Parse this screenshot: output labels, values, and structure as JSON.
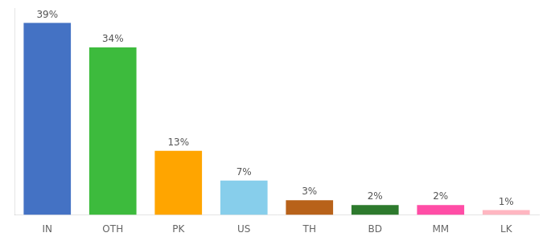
{
  "chart_data": {
    "type": "bar",
    "categories": [
      "IN",
      "OTH",
      "PK",
      "US",
      "TH",
      "BD",
      "MM",
      "LK"
    ],
    "values": [
      39,
      34,
      13,
      7,
      3,
      2,
      2,
      1
    ],
    "value_labels": [
      "39%",
      "34%",
      "13%",
      "7%",
      "3%",
      "2%",
      "2%",
      "1%"
    ],
    "colors": [
      "#4472c4",
      "#3dbb3d",
      "#ffa500",
      "#87ceeb",
      "#b8621a",
      "#2d7a2d",
      "#ff4da6",
      "#ffb6c1"
    ],
    "ylim": [
      0,
      42
    ],
    "data_labels": true,
    "tick_labels": "x",
    "grid": false
  }
}
